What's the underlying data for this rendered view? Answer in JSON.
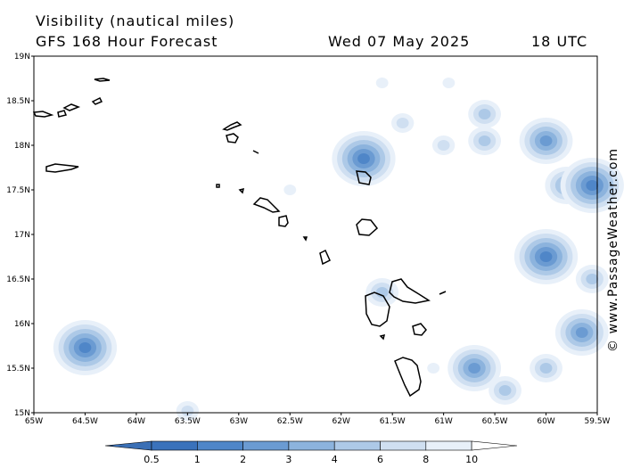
{
  "header": {
    "title_line1": "Visibility (nautical miles)",
    "title_line2": "GFS 168 Hour Forecast",
    "datetime": "Wed 07 May 2025",
    "time": "18 UTC"
  },
  "watermark": "© www.PassageWeather.com",
  "axes": {
    "lon_labels": [
      "65W",
      "64.5W",
      "64W",
      "63.5W",
      "63W",
      "62.5W",
      "62W",
      "61.5W",
      "61W",
      "60.5W",
      "60W",
      "59.5W"
    ],
    "lat_labels": [
      "19N",
      "18.5N",
      "18N",
      "17.5N",
      "17N",
      "16.5N",
      "16N",
      "15.5N",
      "15N"
    ],
    "lon_range": [
      -65,
      -59.5
    ],
    "lat_range": [
      15,
      19
    ]
  },
  "colorbar": {
    "labels": [
      "0.5",
      "1",
      "2",
      "3",
      "4",
      "6",
      "8",
      "10"
    ],
    "colors": [
      "#3f78c0",
      "#4f86c8",
      "#6b9bd2",
      "#8cb3dd",
      "#adc9e7",
      "#cfdff1",
      "#e8f0f9",
      "#ffffff"
    ]
  },
  "visibility_cells": [
    {
      "lon": -64.5,
      "lat": 15.73,
      "level": 2
    },
    {
      "lon": -63.5,
      "lat": 15.02,
      "level": 6
    },
    {
      "lon": -62.5,
      "lat": 17.5,
      "level": 7
    },
    {
      "lon": -61.78,
      "lat": 17.85,
      "level": 2
    },
    {
      "lon": -61.6,
      "lat": 16.35,
      "level": 5
    },
    {
      "lon": -61.4,
      "lat": 18.25,
      "level": 6
    },
    {
      "lon": -61.0,
      "lat": 18.0,
      "level": 6
    },
    {
      "lon": -61.6,
      "lat": 18.7,
      "level": 7
    },
    {
      "lon": -60.95,
      "lat": 18.7,
      "level": 7
    },
    {
      "lon": -60.6,
      "lat": 18.35,
      "level": 5
    },
    {
      "lon": -60.6,
      "lat": 18.05,
      "level": 5
    },
    {
      "lon": -60.0,
      "lat": 18.05,
      "level": 3
    },
    {
      "lon": -59.8,
      "lat": 17.55,
      "level": 4
    },
    {
      "lon": -59.55,
      "lat": 17.55,
      "level": 2
    },
    {
      "lon": -60.0,
      "lat": 16.75,
      "level": 2
    },
    {
      "lon": -59.55,
      "lat": 16.5,
      "level": 5
    },
    {
      "lon": -59.65,
      "lat": 15.9,
      "level": 3
    },
    {
      "lon": -60.0,
      "lat": 15.5,
      "level": 5
    },
    {
      "lon": -60.7,
      "lat": 15.5,
      "level": 3
    },
    {
      "lon": -60.4,
      "lat": 15.25,
      "level": 5
    },
    {
      "lon": -61.1,
      "lat": 15.5,
      "level": 7
    }
  ]
}
